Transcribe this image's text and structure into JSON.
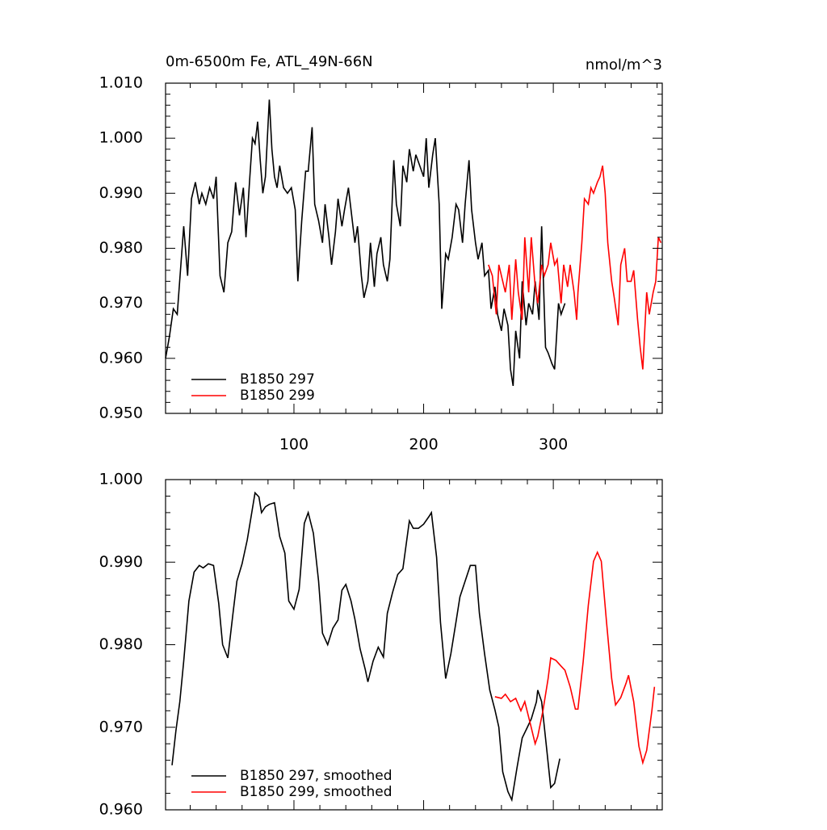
{
  "chart_data": [
    {
      "type": "line",
      "title": "0m-6500m Fe, ATL_49N-66N",
      "units_label": "nmol/m^3",
      "xlim": [
        1,
        384
      ],
      "xticks": [
        100,
        200,
        300
      ],
      "xtick_labels": true,
      "ylim": [
        0.95,
        1.01
      ],
      "yticks": [
        {
          "value": 0.95,
          "label": "0.950"
        },
        {
          "value": 0.96,
          "label": "0.960"
        },
        {
          "value": 0.97,
          "label": "0.970"
        },
        {
          "value": 0.98,
          "label": "0.980"
        },
        {
          "value": 0.99,
          "label": "0.990"
        },
        {
          "value": 1.0,
          "label": "1.000"
        },
        {
          "value": 1.01,
          "label": "1.010"
        }
      ],
      "legend": "lower left",
      "series": [
        {
          "name": "B1850 297",
          "color": "#000000",
          "x": [
            1,
            4,
            7,
            10,
            15,
            18,
            21,
            24,
            27,
            29,
            32,
            35,
            38,
            40,
            43,
            46,
            49,
            52,
            55,
            58,
            61,
            63,
            66,
            68,
            70,
            72,
            74,
            76,
            78,
            81,
            83,
            85,
            87,
            89,
            92,
            95,
            98,
            101,
            103,
            106,
            109,
            111,
            114,
            116,
            119,
            122,
            124,
            127,
            129,
            132,
            134,
            137,
            139,
            142,
            144,
            147,
            149,
            152,
            154,
            157,
            159,
            162,
            164,
            167,
            169,
            172,
            174,
            177,
            179,
            182,
            184,
            187,
            189,
            192,
            194,
            197,
            200,
            202,
            204,
            207,
            209,
            212,
            214,
            217,
            219,
            222,
            225,
            227,
            230,
            232,
            235,
            237,
            240,
            242,
            245,
            247,
            250,
            252,
            255,
            257,
            260,
            262,
            265,
            267,
            269,
            271,
            274,
            276,
            279,
            281,
            284,
            286,
            289,
            291,
            294,
            296,
            299,
            301,
            304,
            306,
            309
          ],
          "values": [
            0.96,
            0.964,
            0.969,
            0.968,
            0.984,
            0.975,
            0.989,
            0.992,
            0.988,
            0.99,
            0.988,
            0.991,
            0.989,
            0.993,
            0.975,
            0.972,
            0.981,
            0.983,
            0.992,
            0.986,
            0.991,
            0.982,
            0.993,
            1.0,
            0.999,
            1.003,
            0.996,
            0.99,
            0.993,
            1.007,
            0.998,
            0.993,
            0.991,
            0.995,
            0.991,
            0.99,
            0.991,
            0.987,
            0.974,
            0.985,
            0.994,
            0.994,
            1.002,
            0.988,
            0.985,
            0.981,
            0.988,
            0.982,
            0.977,
            0.983,
            0.989,
            0.984,
            0.987,
            0.991,
            0.987,
            0.981,
            0.984,
            0.975,
            0.971,
            0.974,
            0.981,
            0.973,
            0.979,
            0.982,
            0.977,
            0.974,
            0.978,
            0.996,
            0.988,
            0.984,
            0.995,
            0.992,
            0.998,
            0.994,
            0.997,
            0.995,
            0.993,
            1.0,
            0.991,
            0.997,
            1.0,
            0.988,
            0.969,
            0.979,
            0.978,
            0.982,
            0.988,
            0.987,
            0.981,
            0.988,
            0.996,
            0.987,
            0.981,
            0.978,
            0.981,
            0.975,
            0.976,
            0.969,
            0.973,
            0.968,
            0.965,
            0.969,
            0.966,
            0.958,
            0.955,
            0.965,
            0.96,
            0.974,
            0.966,
            0.97,
            0.968,
            0.974,
            0.967,
            0.984,
            0.962,
            0.961,
            0.959,
            0.958,
            0.97,
            0.968,
            0.97
          ]
        },
        {
          "name": "B1850 299",
          "color": "#ff0000",
          "x": [
            250,
            253,
            256,
            258,
            261,
            263,
            266,
            268,
            271,
            273,
            276,
            278,
            281,
            283,
            286,
            288,
            291,
            293,
            296,
            298,
            301,
            303,
            306,
            308,
            311,
            313,
            316,
            318,
            319,
            322,
            324,
            327,
            329,
            331,
            334,
            336,
            338,
            340,
            342,
            345,
            347,
            350,
            352,
            355,
            357,
            360,
            362,
            365,
            367,
            369,
            372,
            374,
            377,
            379,
            381,
            383
          ],
          "values": [
            0.977,
            0.975,
            0.968,
            0.977,
            0.974,
            0.972,
            0.977,
            0.967,
            0.978,
            0.972,
            0.967,
            0.982,
            0.972,
            0.982,
            0.973,
            0.97,
            0.977,
            0.975,
            0.977,
            0.981,
            0.977,
            0.978,
            0.97,
            0.977,
            0.973,
            0.977,
            0.972,
            0.967,
            0.972,
            0.981,
            0.989,
            0.988,
            0.991,
            0.99,
            0.992,
            0.993,
            0.995,
            0.99,
            0.981,
            0.974,
            0.971,
            0.966,
            0.977,
            0.98,
            0.974,
            0.974,
            0.976,
            0.967,
            0.962,
            0.958,
            0.972,
            0.968,
            0.972,
            0.974,
            0.982,
            0.981
          ]
        }
      ]
    },
    {
      "type": "line",
      "xlim": [
        1,
        384
      ],
      "xticks": [
        100,
        200,
        300
      ],
      "xtick_labels": false,
      "ylim": [
        0.96,
        1.0
      ],
      "yticks": [
        {
          "value": 0.96,
          "label": "0.960"
        },
        {
          "value": 0.97,
          "label": "0.970"
        },
        {
          "value": 0.98,
          "label": "0.980"
        },
        {
          "value": 0.99,
          "label": "0.990"
        },
        {
          "value": 1.0,
          "label": "1.000"
        }
      ],
      "legend": "lower left",
      "series": [
        {
          "name": "B1850 297, smoothed",
          "color": "#000000",
          "x": [
            6,
            9,
            12,
            15,
            19,
            23,
            27,
            30,
            34,
            38,
            42,
            45,
            49,
            53,
            56,
            60,
            64,
            68,
            70,
            73,
            75,
            78,
            81,
            85,
            89,
            93,
            96,
            100,
            104,
            108,
            111,
            115,
            119,
            122,
            126,
            130,
            134,
            137,
            140,
            144,
            147,
            151,
            155,
            157,
            161,
            165,
            169,
            172,
            176,
            180,
            184,
            189,
            192,
            196,
            200,
            204,
            206,
            210,
            213,
            217,
            221,
            225,
            228,
            232,
            236,
            240,
            243,
            247,
            251,
            255,
            258,
            261,
            265,
            268,
            272,
            276,
            280,
            283,
            287,
            288,
            291,
            295,
            298,
            301,
            305
          ],
          "values": [
            0.9654,
            0.9696,
            0.9731,
            0.978,
            0.9853,
            0.9888,
            0.9896,
            0.9893,
            0.9898,
            0.9896,
            0.985,
            0.98,
            0.9784,
            0.9838,
            0.9877,
            0.9898,
            0.9927,
            0.9965,
            0.9984,
            0.9979,
            0.996,
            0.9967,
            0.997,
            0.9972,
            0.9931,
            0.9911,
            0.9853,
            0.9843,
            0.9867,
            0.9947,
            0.996,
            0.9935,
            0.9877,
            0.9814,
            0.98,
            0.982,
            0.983,
            0.9866,
            0.9873,
            0.9853,
            0.9831,
            0.9795,
            0.977,
            0.9755,
            0.978,
            0.9797,
            0.9785,
            0.9838,
            0.9863,
            0.9885,
            0.9892,
            0.995,
            0.9941,
            0.9941,
            0.9946,
            0.9955,
            0.996,
            0.9906,
            0.9827,
            0.9759,
            0.9789,
            0.9828,
            0.9858,
            0.9877,
            0.9896,
            0.9896,
            0.9838,
            0.9789,
            0.9745,
            0.9721,
            0.97,
            0.9646,
            0.9622,
            0.9612,
            0.9651,
            0.9687,
            0.97,
            0.971,
            0.9731,
            0.9745,
            0.9731,
            0.9672,
            0.9627,
            0.9632,
            0.9662
          ]
        },
        {
          "name": "B1850 299, smoothed",
          "color": "#ff0000",
          "x": [
            255,
            260,
            263,
            267,
            271,
            275,
            278,
            282,
            286,
            288,
            292,
            296,
            298,
            302,
            306,
            309,
            313,
            317,
            319,
            323,
            327,
            331,
            334,
            337,
            341,
            345,
            348,
            352,
            356,
            358,
            362,
            366,
            369,
            372,
            376,
            378
          ],
          "values": [
            0.9737,
            0.9735,
            0.974,
            0.9731,
            0.9735,
            0.972,
            0.9731,
            0.9706,
            0.968,
            0.9689,
            0.972,
            0.9759,
            0.9784,
            0.9781,
            0.9774,
            0.9769,
            0.9749,
            0.9722,
            0.9722,
            0.9779,
            0.9848,
            0.9901,
            0.9912,
            0.9901,
            0.9828,
            0.9759,
            0.9727,
            0.9736,
            0.9753,
            0.9763,
            0.9731,
            0.9677,
            0.9657,
            0.9672,
            0.972,
            0.9749
          ]
        }
      ]
    }
  ]
}
